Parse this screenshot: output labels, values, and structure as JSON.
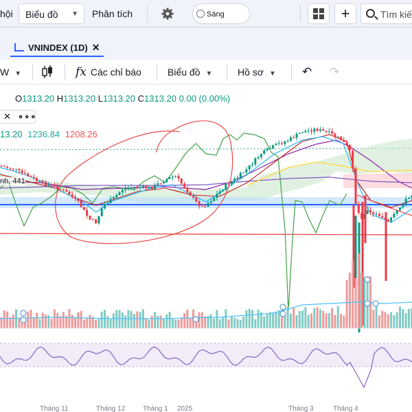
{
  "header": {
    "menu_partial": "hội",
    "chart_type_label": "Biểu đồ",
    "analysis_label": "Phân tích",
    "theme_label": "Sáng",
    "search_placeholder": "Tìm kiế",
    "icons": {
      "settings": "gear-icon",
      "layout": "layout-grid-icon",
      "add": "plus-icon",
      "search": "search-icon"
    }
  },
  "tab": {
    "label": "VNINDEX (1D)",
    "close": "✕"
  },
  "toolbar": {
    "interval_partial": "W",
    "indicators_label": "Các chỉ báo",
    "chart_menu_label": "Biểu đồ",
    "profile_label": "Hồ sơ",
    "undo": "↶",
    "redo": "↷"
  },
  "legend": {
    "open_key": "O",
    "open": "1313.20",
    "high_key": "H",
    "high": "1313.20",
    "low_key": "L",
    "low": "1313.20",
    "close_key": "C",
    "close": "1313.20",
    "change": "0.00 (0.00%)",
    "close_icon": "✕",
    "more_icon": "∘∘∘"
  },
  "indicator": {
    "v1": "13.20",
    "v2": "1236.84",
    "v3": "1208.26"
  },
  "partial_label": "nh, 441",
  "time_axis": [
    "Tháng 11",
    "Tháng 12",
    "Tháng 1",
    "2025",
    "Tháng 3",
    "Tháng 4"
  ],
  "colors": {
    "up": "#089981",
    "down": "#f23645",
    "accent": "#2962ff",
    "rsi": "#7e57c2",
    "drawing": "#e53935"
  }
}
